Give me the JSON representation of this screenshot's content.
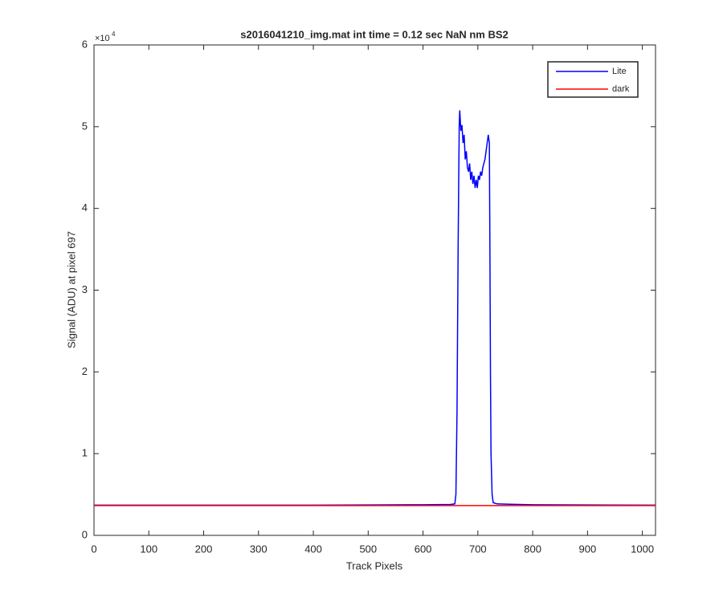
{
  "chart_data": {
    "type": "line",
    "title": "s2016041210_img.mat int time = 0.12 sec  NaN nm BS2",
    "x_label": "Track Pixels",
    "y_label": "Signal (ADU) at pixel 697",
    "y_multiplier": {
      "base": "×10",
      "exponent": "4"
    },
    "xlim": [
      0,
      1024
    ],
    "xticks": [
      0,
      100,
      200,
      300,
      400,
      500,
      600,
      700,
      800,
      900,
      1000
    ],
    "ylim": [
      0,
      6
    ],
    "yticks": [
      0,
      1,
      2,
      3,
      4,
      5,
      6
    ],
    "legend": "top-right",
    "series": [
      {
        "name": "Lite",
        "color": "#0000ff",
        "x": [
          0,
          100,
          200,
          300,
          400,
          500,
          600,
          650,
          658,
          660,
          662,
          664,
          666,
          667,
          669,
          671,
          673,
          675,
          677,
          679,
          681,
          683,
          685,
          687,
          689,
          691,
          693,
          695,
          697,
          699,
          701,
          703,
          705,
          707,
          709,
          711,
          713,
          715,
          717,
          719,
          721,
          722,
          723,
          724,
          726,
          728,
          735,
          760,
          800,
          900,
          1024
        ],
        "values": [
          0.37,
          0.37,
          0.37,
          0.37,
          0.37,
          0.372,
          0.375,
          0.378,
          0.385,
          0.5,
          1.5,
          3.5,
          5.0,
          5.2,
          4.95,
          5.02,
          4.8,
          4.9,
          4.6,
          4.7,
          4.5,
          4.45,
          4.55,
          4.35,
          4.45,
          4.3,
          4.4,
          4.25,
          4.35,
          4.25,
          4.4,
          4.35,
          4.45,
          4.4,
          4.5,
          4.55,
          4.6,
          4.7,
          4.8,
          4.9,
          4.8,
          3.5,
          2.0,
          1.0,
          0.5,
          0.4,
          0.385,
          0.38,
          0.375,
          0.372,
          0.37
        ]
      },
      {
        "name": "dark",
        "color": "#ff0000",
        "x": [
          0,
          256,
          512,
          768,
          1024
        ],
        "values": [
          0.365,
          0.365,
          0.365,
          0.365,
          0.365
        ]
      }
    ]
  }
}
